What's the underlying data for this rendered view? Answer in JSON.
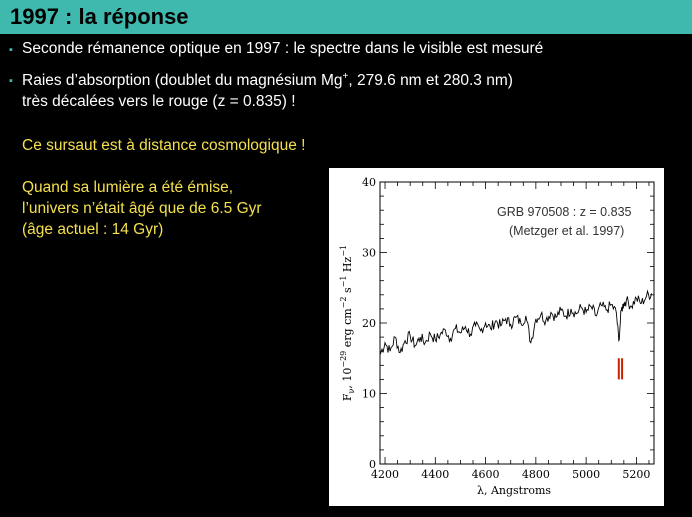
{
  "slide": {
    "title": "1997 : la réponse",
    "bullets": [
      {
        "text": "Seconde rémanence optique en 1997 : le spectre dans le visible est mesuré"
      },
      {
        "line1_part1": "Raies d’absorption (doublet du magnésium Mg",
        "line1_sup": "+",
        "line1_part2": ", 279.6 nm et 280.3 nm)",
        "line2": "très décalées vers le rouge (z = 0.835) !"
      }
    ],
    "highlight": "Ce sursaut est à distance cosmologique !",
    "note_lines": [
      "Quand sa lumière a été émise,",
      "l’univers n’était âgé que de 6.5 Gyr",
      "(âge actuel : 14 Gyr)"
    ],
    "colors": {
      "title_bar": "#3fb8ae",
      "background": "#000000",
      "body_text": "#ffffff",
      "highlight_text": "#f4e04d",
      "marker_lines": "#cc2200"
    }
  },
  "chart_data": {
    "type": "line",
    "annotation_line1": "GRB 970508 : z = 0.835",
    "annotation_line2": "(Metzger et al. 1997)",
    "xlabel": "λ, Angstroms",
    "ylabel": "F_ν, 10^-29 erg cm^-2 s^-1 Hz^-1",
    "xlim": [
      4180,
      5270
    ],
    "ylim": [
      0,
      40
    ],
    "x_ticks": [
      4200,
      4400,
      4600,
      4800,
      5000,
      5200
    ],
    "y_ticks": [
      0,
      10,
      20,
      30,
      40
    ],
    "marker_lines_x": [
      5130,
      5143
    ],
    "marker_lines_y": [
      12,
      15
    ],
    "series": [
      {
        "x": [
          4180,
          4200,
          4220,
          4240,
          4260,
          4280,
          4300,
          4320,
          4340,
          4360,
          4380,
          4400,
          4420,
          4440,
          4460,
          4480,
          4500,
          4520,
          4540,
          4560,
          4580,
          4600,
          4620,
          4640,
          4660,
          4680,
          4700,
          4720,
          4740,
          4760,
          4780,
          4800,
          4820,
          4840,
          4860,
          4880,
          4900,
          4920,
          4940,
          4960,
          4980,
          5000,
          5020,
          5040,
          5060,
          5080,
          5100,
          5120,
          5130,
          5140,
          5150,
          5160,
          5180,
          5200,
          5220,
          5240,
          5260
        ],
        "values": [
          15.5,
          17.2,
          16.0,
          18.0,
          15.8,
          17.5,
          18.2,
          16.8,
          18.0,
          17.2,
          18.5,
          17.6,
          18.4,
          19.0,
          17.8,
          19.2,
          18.6,
          19.5,
          18.4,
          19.6,
          18.9,
          20.0,
          19.2,
          20.3,
          19.6,
          20.6,
          19.8,
          20.8,
          20.0,
          21.0,
          17.2,
          20.6,
          21.2,
          20.4,
          21.5,
          20.8,
          21.8,
          21.0,
          22.0,
          21.3,
          22.2,
          21.5,
          22.3,
          21.0,
          22.5,
          21.8,
          22.6,
          21.5,
          17.5,
          21.8,
          22.8,
          23.2,
          22.4,
          23.5,
          22.8,
          23.8,
          24.2
        ]
      }
    ]
  }
}
